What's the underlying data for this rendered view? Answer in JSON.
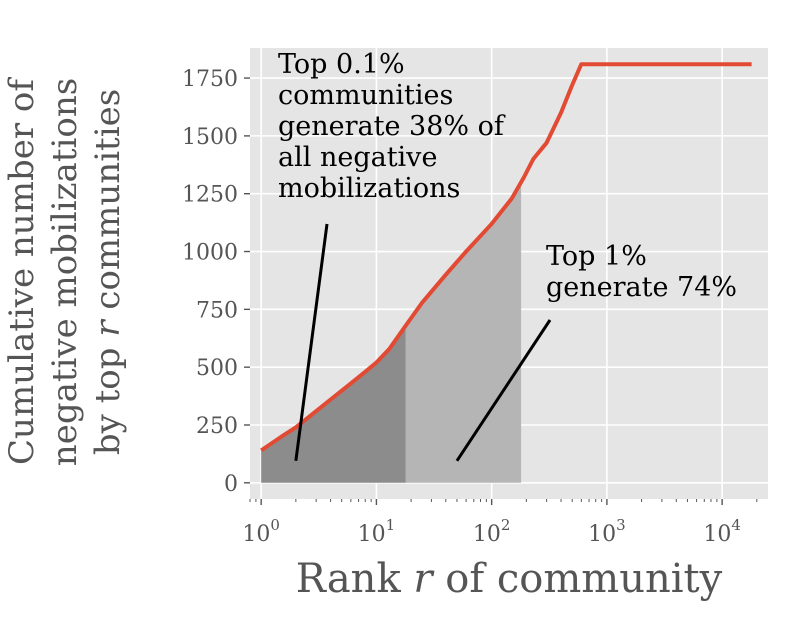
{
  "chart_data": {
    "type": "line",
    "x_scale": "log",
    "grid": true,
    "xlabel_prefix": "Rank ",
    "xlabel_var": "r",
    "xlabel_suffix": " of community",
    "ylabel_lines": [
      {
        "text": "Cumulative number of"
      },
      {
        "text": "negative mobilizations"
      },
      {
        "pre": "by top ",
        "var": "r",
        "post": " communities"
      }
    ],
    "x_ticks": [
      1,
      10,
      100,
      1000,
      10000
    ],
    "x_tick_labels": [
      {
        "base": "10",
        "exp": "0"
      },
      {
        "base": "10",
        "exp": "1"
      },
      {
        "base": "10",
        "exp": "2"
      },
      {
        "base": "10",
        "exp": "3"
      },
      {
        "base": "10",
        "exp": "4"
      }
    ],
    "y_ticks": [
      0,
      250,
      500,
      750,
      1000,
      1250,
      1500,
      1750
    ],
    "y_tick_labels": [
      "0",
      "250",
      "500",
      "750",
      "1000",
      "1250",
      "1500",
      "1750"
    ],
    "xlim": [
      0.8,
      25000
    ],
    "ylim": [
      -70,
      1880
    ],
    "series": [
      {
        "color": "#E24A33",
        "x": [
          1,
          1.5,
          2,
          3,
          4,
          6,
          8,
          10,
          13,
          18,
          25,
          40,
          60,
          100,
          150,
          190,
          230,
          300,
          400,
          500,
          600,
          1000,
          3000,
          10000,
          18000
        ],
        "y": [
          140,
          200,
          240,
          310,
          360,
          430,
          480,
          520,
          580,
          680,
          780,
          900,
          1000,
          1120,
          1230,
          1320,
          1400,
          1470,
          1600,
          1720,
          1810,
          1810,
          1810,
          1810,
          1810
        ]
      }
    ],
    "shaded_regions": [
      {
        "x_start": 1,
        "x_end": 18,
        "color": "#8c8c8c"
      },
      {
        "x_start": 18,
        "x_end": 180,
        "color": "#b5b5b5"
      }
    ],
    "annotations": [
      {
        "lines": [
          "Top 0.1%",
          "communities",
          "generate 38% of",
          "all negative",
          "mobilizations"
        ],
        "pointer_to": {
          "x": 2,
          "y": 95
        }
      },
      {
        "lines": [
          "Top 1%",
          "generate 74%"
        ],
        "pointer_to": {
          "x": 50,
          "y": 95
        }
      }
    ]
  }
}
